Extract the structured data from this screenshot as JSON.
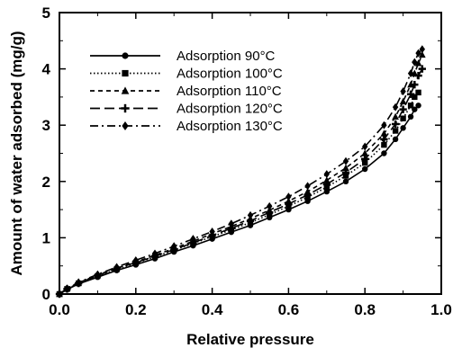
{
  "chart_data": {
    "type": "scatter",
    "title": "",
    "xlabel": "Relative pressure",
    "ylabel": "Amount of water adsorbed (mg/g)",
    "xlim": [
      0,
      1.0
    ],
    "ylim": [
      0,
      5
    ],
    "xticks": [
      "0.0",
      "0.2",
      "0.4",
      "0.6",
      "0.8",
      "1.0"
    ],
    "yticks": [
      "0",
      "1",
      "2",
      "3",
      "4",
      "5"
    ],
    "grid": false,
    "legend_position": "top-left",
    "series": [
      {
        "name": "Adsorption 90°C",
        "marker": "circle",
        "line": "solid",
        "x": [
          0.0,
          0.02,
          0.05,
          0.1,
          0.15,
          0.2,
          0.25,
          0.3,
          0.35,
          0.4,
          0.45,
          0.5,
          0.55,
          0.6,
          0.65,
          0.7,
          0.75,
          0.8,
          0.85,
          0.88,
          0.9,
          0.92,
          0.93,
          0.94
        ],
        "y": [
          0.0,
          0.08,
          0.18,
          0.3,
          0.42,
          0.52,
          0.63,
          0.75,
          0.86,
          0.98,
          1.1,
          1.22,
          1.36,
          1.5,
          1.65,
          1.82,
          2.0,
          2.22,
          2.5,
          2.75,
          2.95,
          3.15,
          3.28,
          3.35
        ]
      },
      {
        "name": "Adsorption 100°C",
        "marker": "square",
        "line": "dotted",
        "x": [
          0.0,
          0.02,
          0.05,
          0.1,
          0.15,
          0.2,
          0.25,
          0.3,
          0.35,
          0.4,
          0.45,
          0.5,
          0.55,
          0.6,
          0.65,
          0.7,
          0.75,
          0.8,
          0.85,
          0.88,
          0.9,
          0.92,
          0.93,
          0.94
        ],
        "y": [
          0.0,
          0.09,
          0.19,
          0.32,
          0.44,
          0.55,
          0.66,
          0.78,
          0.9,
          1.02,
          1.14,
          1.27,
          1.41,
          1.56,
          1.72,
          1.9,
          2.1,
          2.33,
          2.65,
          2.9,
          3.12,
          3.35,
          3.5,
          3.58
        ]
      },
      {
        "name": "Adsorption 110°C",
        "marker": "triangle",
        "line": "dashed",
        "x": [
          0.0,
          0.02,
          0.05,
          0.1,
          0.15,
          0.2,
          0.25,
          0.3,
          0.35,
          0.4,
          0.45,
          0.5,
          0.55,
          0.6,
          0.65,
          0.7,
          0.75,
          0.8,
          0.85,
          0.88,
          0.9,
          0.92,
          0.93,
          0.94,
          0.95
        ],
        "y": [
          0.0,
          0.1,
          0.2,
          0.34,
          0.46,
          0.57,
          0.69,
          0.81,
          0.94,
          1.07,
          1.2,
          1.34,
          1.49,
          1.65,
          1.82,
          2.02,
          2.24,
          2.5,
          2.85,
          3.15,
          3.42,
          3.72,
          3.92,
          4.1,
          4.25
        ]
      },
      {
        "name": "Adsorption 120°C",
        "marker": "plus",
        "line": "longdash",
        "x": [
          0.0,
          0.02,
          0.05,
          0.1,
          0.15,
          0.2,
          0.25,
          0.3,
          0.35,
          0.4,
          0.45,
          0.5,
          0.55,
          0.6,
          0.65,
          0.7,
          0.75,
          0.8,
          0.85,
          0.88,
          0.9,
          0.92,
          0.93,
          0.94,
          0.95
        ],
        "y": [
          0.0,
          0.09,
          0.19,
          0.33,
          0.45,
          0.56,
          0.67,
          0.79,
          0.91,
          1.04,
          1.17,
          1.3,
          1.45,
          1.6,
          1.76,
          1.95,
          2.16,
          2.4,
          2.75,
          3.02,
          3.28,
          3.55,
          3.72,
          3.88,
          4.0
        ]
      },
      {
        "name": "Adsorption 130°C",
        "marker": "diamond",
        "line": "dashdot",
        "x": [
          0.0,
          0.02,
          0.05,
          0.1,
          0.15,
          0.2,
          0.25,
          0.3,
          0.35,
          0.4,
          0.45,
          0.5,
          0.55,
          0.6,
          0.65,
          0.7,
          0.75,
          0.8,
          0.85,
          0.88,
          0.9,
          0.92,
          0.93,
          0.94,
          0.95
        ],
        "y": [
          0.0,
          0.1,
          0.21,
          0.35,
          0.48,
          0.6,
          0.72,
          0.85,
          0.98,
          1.11,
          1.25,
          1.4,
          1.56,
          1.73,
          1.92,
          2.13,
          2.36,
          2.62,
          3.0,
          3.32,
          3.6,
          3.92,
          4.12,
          4.28,
          4.35
        ]
      }
    ]
  }
}
